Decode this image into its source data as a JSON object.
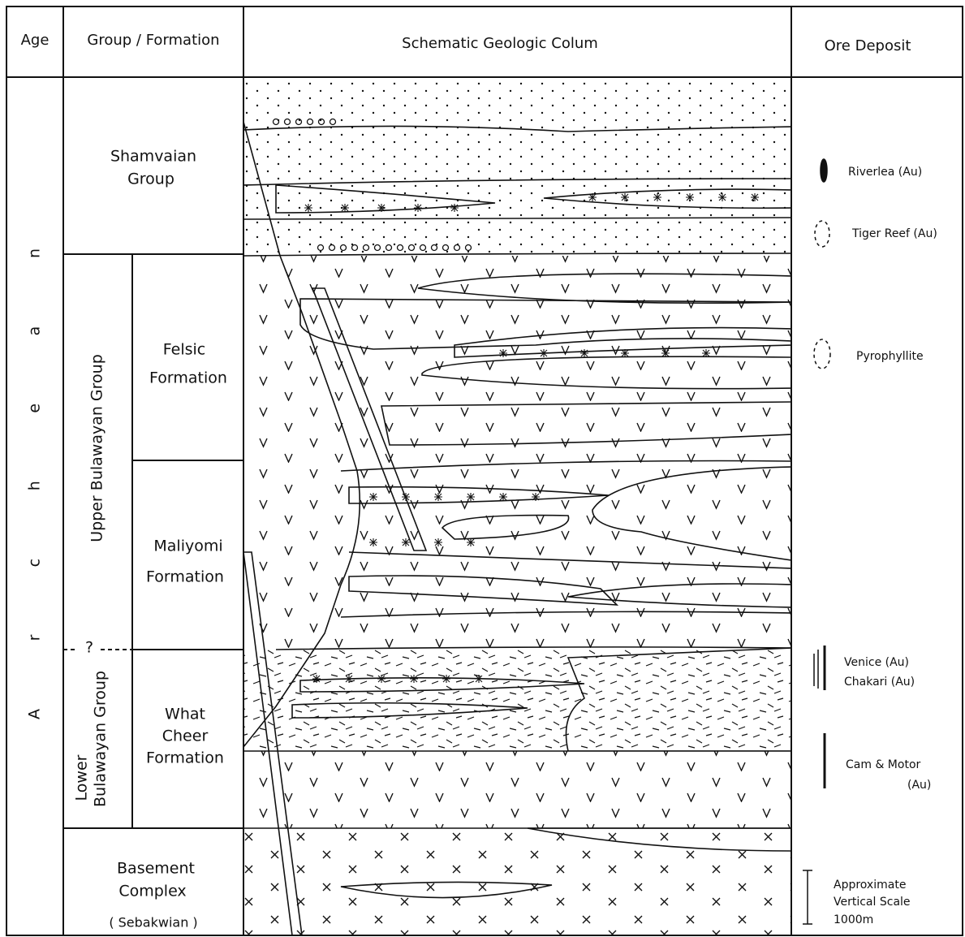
{
  "header": {
    "age": "Age",
    "group_formation": "Group / Formation",
    "column": "Schematic  Geologic  Colum",
    "ore_deposit": "Ore  Deposit"
  },
  "age": "Archean",
  "groups": {
    "shamvaian": [
      "Shamvaian",
      "Group"
    ],
    "upper_bulawayan": "Upper  Bulawayan  Group",
    "felsic": [
      "Felsic",
      "Formation"
    ],
    "maliyomi": [
      "Maliyomi",
      "Formation"
    ],
    "uncertain": "?",
    "lower_bulawayan": [
      "Lower",
      "Bulawayan  Group"
    ],
    "what_cheer": [
      "What",
      "Cheer",
      "Formation"
    ],
    "basement": [
      "Basement",
      "Complex",
      "( Sebakwian )"
    ]
  },
  "ore_deposits": {
    "riverlea": "Riverlea  (Au)",
    "tiger_reef": "Tiger  Reef (Au)",
    "pyrophyllite": "Pyrophyllite",
    "venice": "Venice  (Au)",
    "chakari": "Chakari  (Au)",
    "cam_motor": [
      "Cam & Motor",
      "(Au)"
    ],
    "scale": [
      "Approximate",
      "Vertical  Scale",
      "1000m"
    ]
  }
}
